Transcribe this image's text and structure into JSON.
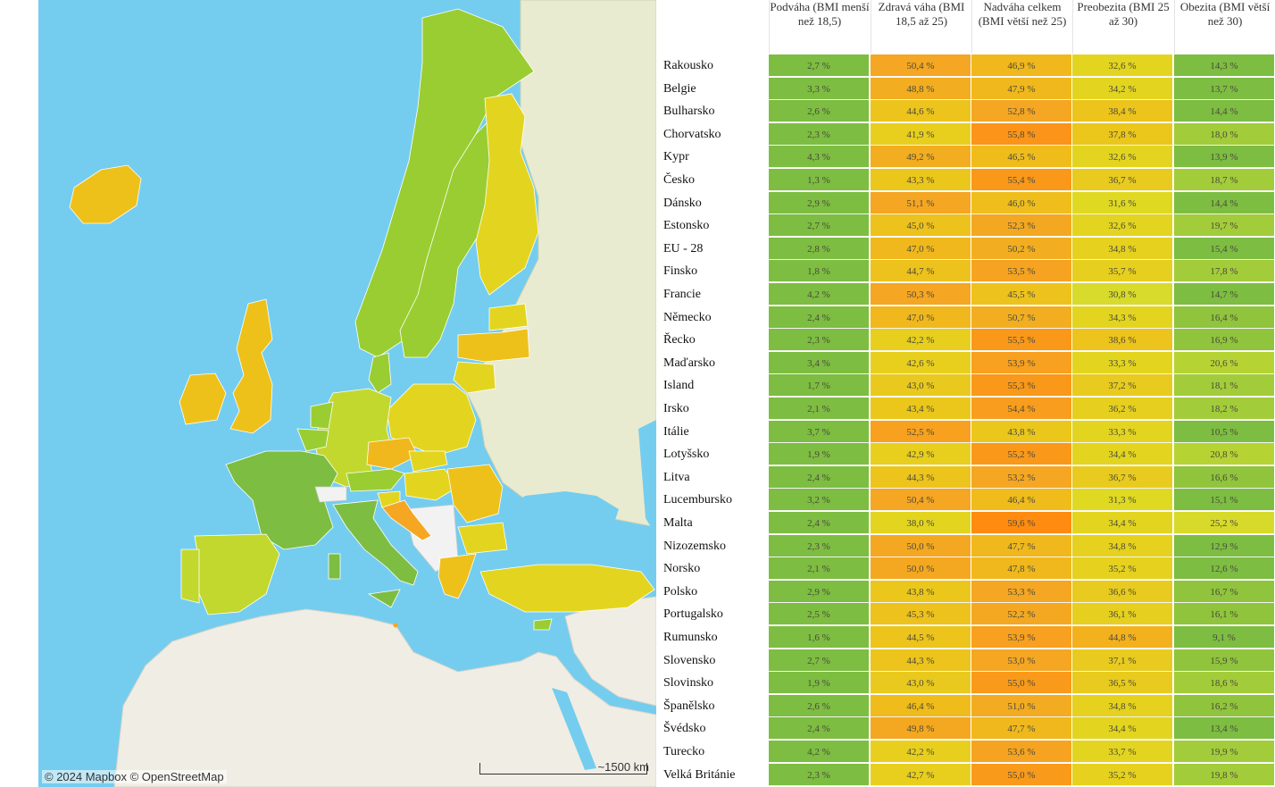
{
  "map": {
    "attribution_mapbox": "© 2024 Mapbox",
    "attribution_osm": "© OpenStreetMap",
    "scale_label": "~1500 km",
    "colors": {
      "sea": "#74cdee",
      "land_no_data": "#e8ebd0",
      "land_africa": "#f0ede5",
      "green_dark": "#7dbd42",
      "green": "#9acd32",
      "yellow_green": "#c3d82e",
      "yellow": "#e3d51f",
      "gold": "#eec11a",
      "orange": "#f5a623"
    }
  },
  "table": {
    "columns": [
      "Podváha (BMI menší než 18,5)",
      "Zdravá váha (BMI 18,5 až 25)",
      "Nadváha celkem (BMI větší než 25)",
      "Preobezita (BMI 25 až 30)",
      "Obezita (BMI větší než 30)"
    ],
    "rows": [
      {
        "country": "Rakousko",
        "values": [
          "2,7 %",
          "50,4 %",
          "46,9 %",
          "32,6 %",
          "14,3 %"
        ],
        "colors": [
          "#7dbd42",
          "#f5a623",
          "#f0b81c",
          "#e3d51f",
          "#7dbd42"
        ]
      },
      {
        "country": "Belgie",
        "values": [
          "3,3 %",
          "48,8 %",
          "47,9 %",
          "34,2 %",
          "13,7 %"
        ],
        "colors": [
          "#7dbd42",
          "#f2ad20",
          "#f0b81c",
          "#e3d51f",
          "#7dbd42"
        ]
      },
      {
        "country": "Bulharsko",
        "values": [
          "2,6 %",
          "44,6 %",
          "52,8 %",
          "38,4 %",
          "14,4 %"
        ],
        "colors": [
          "#7dbd42",
          "#ecc41c",
          "#f5a623",
          "#ecc41c",
          "#7dbd42"
        ]
      },
      {
        "country": "Chorvatsko",
        "values": [
          "2,3 %",
          "41,9 %",
          "55,8 %",
          "37,8 %",
          "18,0 %"
        ],
        "colors": [
          "#7dbd42",
          "#e8cf1e",
          "#fb9418",
          "#ebc71c",
          "#a3cc3a"
        ]
      },
      {
        "country": "Kypr",
        "values": [
          "4,3 %",
          "49,2 %",
          "46,5 %",
          "32,6 %",
          "13,9 %"
        ],
        "colors": [
          "#7dbd42",
          "#f2ad20",
          "#efbc1c",
          "#e3d51f",
          "#7dbd42"
        ]
      },
      {
        "country": "Česko",
        "values": [
          "1,3 %",
          "43,3 %",
          "55,4 %",
          "36,7 %",
          "18,7 %"
        ],
        "colors": [
          "#7dbd42",
          "#ebc71c",
          "#fa9819",
          "#e8cb1e",
          "#a3cc3a"
        ]
      },
      {
        "country": "Dánsko",
        "values": [
          "2,9 %",
          "51,1 %",
          "46,0 %",
          "31,6 %",
          "14,4 %"
        ],
        "colors": [
          "#7dbd42",
          "#f5a623",
          "#efbe1c",
          "#dfd922",
          "#7dbd42"
        ]
      },
      {
        "country": "Estonsko",
        "values": [
          "2,7 %",
          "45,0 %",
          "52,3 %",
          "32,6 %",
          "19,7 %"
        ],
        "colors": [
          "#7dbd42",
          "#eec21c",
          "#f4a821",
          "#e3d51f",
          "#a3cc3a"
        ]
      },
      {
        "country": "EU - 28",
        "values": [
          "2,8 %",
          "47,0 %",
          "50,2 %",
          "34,8 %",
          "15,4 %"
        ],
        "colors": [
          "#7dbd42",
          "#f0b81c",
          "#f2ae20",
          "#e5d11e",
          "#7dbd42"
        ]
      },
      {
        "country": "Finsko",
        "values": [
          "1,8 %",
          "44,7 %",
          "53,5 %",
          "35,7 %",
          "17,8 %"
        ],
        "colors": [
          "#7dbd42",
          "#eec21c",
          "#f6a321",
          "#e6cf1e",
          "#a3cc3a"
        ]
      },
      {
        "country": "Francie",
        "values": [
          "4,2 %",
          "50,3 %",
          "45,5 %",
          "30,8 %",
          "14,7 %"
        ],
        "colors": [
          "#7dbd42",
          "#f5a623",
          "#eec21c",
          "#d8da2c",
          "#7dbd42"
        ]
      },
      {
        "country": "Německo",
        "values": [
          "2,4 %",
          "47,0 %",
          "50,7 %",
          "34,3 %",
          "16,4 %"
        ],
        "colors": [
          "#7dbd42",
          "#f0b81c",
          "#f2ae20",
          "#e3d51f",
          "#8fc43c"
        ]
      },
      {
        "country": "Řecko",
        "values": [
          "2,3 %",
          "42,2 %",
          "55,5 %",
          "38,6 %",
          "16,9 %"
        ],
        "colors": [
          "#7dbd42",
          "#e8cf1e",
          "#fa9819",
          "#ecc41c",
          "#8fc43c"
        ]
      },
      {
        "country": "Maďarsko",
        "values": [
          "3,4 %",
          "42,6 %",
          "53,9 %",
          "33,3 %",
          "20,6 %"
        ],
        "colors": [
          "#7dbd42",
          "#e8cf1e",
          "#f8a01f",
          "#e3d51f",
          "#b6d334"
        ]
      },
      {
        "country": "Island",
        "values": [
          "1,7 %",
          "43,0 %",
          "55,3 %",
          "37,2 %",
          "18,1 %"
        ],
        "colors": [
          "#7dbd42",
          "#eac91e",
          "#fa9819",
          "#e8cb1e",
          "#a3cc3a"
        ]
      },
      {
        "country": "Irsko",
        "values": [
          "2,1 %",
          "43,4 %",
          "54,4 %",
          "36,2 %",
          "18,2 %"
        ],
        "colors": [
          "#7dbd42",
          "#ebc71c",
          "#f89d1e",
          "#e6cf1e",
          "#a3cc3a"
        ]
      },
      {
        "country": "Itálie",
        "values": [
          "3,7 %",
          "52,5 %",
          "43,8 %",
          "33,3 %",
          "10,5 %"
        ],
        "colors": [
          "#7dbd42",
          "#f7a11f",
          "#ebc71c",
          "#e3d51f",
          "#7dbd42"
        ]
      },
      {
        "country": "Lotyšsko",
        "values": [
          "1,9 %",
          "42,9 %",
          "55,2 %",
          "34,4 %",
          "20,8 %"
        ],
        "colors": [
          "#7dbd42",
          "#e8cf1e",
          "#fa9819",
          "#e3d51f",
          "#b6d334"
        ]
      },
      {
        "country": "Litva",
        "values": [
          "2,4 %",
          "44,3 %",
          "53,2 %",
          "36,7 %",
          "16,6 %"
        ],
        "colors": [
          "#7dbd42",
          "#ecc41c",
          "#f5a623",
          "#e8cb1e",
          "#8fc43c"
        ]
      },
      {
        "country": "Lucembursko",
        "values": [
          "3,2 %",
          "50,4 %",
          "46,4 %",
          "31,3 %",
          "15,1 %"
        ],
        "colors": [
          "#7dbd42",
          "#f5a623",
          "#efbc1c",
          "#dfd922",
          "#7dbd42"
        ]
      },
      {
        "country": "Malta",
        "values": [
          "2,4 %",
          "38,0 %",
          "59,6 %",
          "34,4 %",
          "25,2 %"
        ],
        "colors": [
          "#7dbd42",
          "#e3d51f",
          "#ff8c10",
          "#e3d51f",
          "#d7da2a"
        ]
      },
      {
        "country": "Nizozemsko",
        "values": [
          "2,3 %",
          "50,0 %",
          "47,7 %",
          "34,8 %",
          "12,9 %"
        ],
        "colors": [
          "#7dbd42",
          "#f4a821",
          "#f0b81c",
          "#e5d11e",
          "#7dbd42"
        ]
      },
      {
        "country": "Norsko",
        "values": [
          "2,1 %",
          "50,0 %",
          "47,8 %",
          "35,2 %",
          "12,6 %"
        ],
        "colors": [
          "#7dbd42",
          "#f4a821",
          "#f0b81c",
          "#e5d11e",
          "#7dbd42"
        ]
      },
      {
        "country": "Polsko",
        "values": [
          "2,9 %",
          "43,8 %",
          "53,3 %",
          "36,6 %",
          "16,7 %"
        ],
        "colors": [
          "#7dbd42",
          "#ebc71c",
          "#f5a623",
          "#e8cb1e",
          "#8fc43c"
        ]
      },
      {
        "country": "Portugalsko",
        "values": [
          "2,5 %",
          "45,3 %",
          "52,2 %",
          "36,1 %",
          "16,1 %"
        ],
        "colors": [
          "#7dbd42",
          "#eec21c",
          "#f4a821",
          "#e6cf1e",
          "#8fc43c"
        ]
      },
      {
        "country": "Rumunsko",
        "values": [
          "1,6 %",
          "44,5 %",
          "53,9 %",
          "44,8 %",
          "9,1 %"
        ],
        "colors": [
          "#7dbd42",
          "#ecc41c",
          "#f8a01f",
          "#f4b11e",
          "#7dbd42"
        ]
      },
      {
        "country": "Slovensko",
        "values": [
          "2,7 %",
          "44,3 %",
          "53,0 %",
          "37,1 %",
          "15,9 %"
        ],
        "colors": [
          "#7dbd42",
          "#ecc41c",
          "#f5a623",
          "#e8cb1e",
          "#8fc43c"
        ]
      },
      {
        "country": "Slovinsko",
        "values": [
          "1,9 %",
          "43,0 %",
          "55,0 %",
          "36,5 %",
          "18,6 %"
        ],
        "colors": [
          "#7dbd42",
          "#eac91e",
          "#f99a1b",
          "#e8cb1e",
          "#a3cc3a"
        ]
      },
      {
        "country": "Španělsko",
        "values": [
          "2,6 %",
          "46,4 %",
          "51,0 %",
          "34,8 %",
          "16,2 %"
        ],
        "colors": [
          "#7dbd42",
          "#efbc1c",
          "#f3ab21",
          "#e5d11e",
          "#8fc43c"
        ]
      },
      {
        "country": "Švédsko",
        "values": [
          "2,4 %",
          "49,8 %",
          "47,7 %",
          "34,4 %",
          "13,4 %"
        ],
        "colors": [
          "#7dbd42",
          "#f4a821",
          "#f0b81c",
          "#e3d51f",
          "#7dbd42"
        ]
      },
      {
        "country": "Turecko",
        "values": [
          "4,2 %",
          "42,2 %",
          "53,6 %",
          "33,7 %",
          "19,9 %"
        ],
        "colors": [
          "#7dbd42",
          "#e8cf1e",
          "#f6a321",
          "#e3d51f",
          "#a3cc3a"
        ]
      },
      {
        "country": "Velká Británie",
        "values": [
          "2,3 %",
          "42,7 %",
          "55,0 %",
          "35,2 %",
          "19,8 %"
        ],
        "colors": [
          "#7dbd42",
          "#e8cf1e",
          "#f99a1b",
          "#e5d11e",
          "#a3cc3a"
        ]
      }
    ]
  }
}
